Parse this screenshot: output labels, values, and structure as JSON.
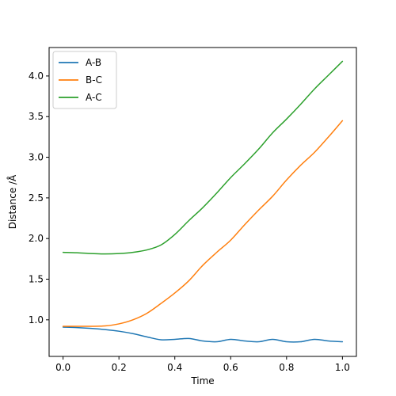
{
  "chart_data": {
    "type": "line",
    "title": "",
    "xlabel": "Time",
    "ylabel": "Distance /Å",
    "xlim": [
      -0.05,
      1.05
    ],
    "ylim": [
      0.55,
      4.35
    ],
    "xticks": [
      0.0,
      0.2,
      0.4,
      0.6,
      0.8,
      1.0
    ],
    "xtick_labels": [
      "0.0",
      "0.2",
      "0.4",
      "0.6",
      "0.8",
      "1.0"
    ],
    "yticks": [
      1.0,
      1.5,
      2.0,
      2.5,
      3.0,
      3.5,
      4.0
    ],
    "ytick_labels": [
      "1.0",
      "1.5",
      "2.0",
      "2.5",
      "3.0",
      "3.5",
      "4.0"
    ],
    "grid": false,
    "legend_position": "top-left",
    "x": [
      0.0,
      0.05,
      0.1,
      0.15,
      0.2,
      0.25,
      0.3,
      0.35,
      0.4,
      0.45,
      0.5,
      0.55,
      0.6,
      0.65,
      0.7,
      0.75,
      0.8,
      0.85,
      0.9,
      0.95,
      1.0
    ],
    "series": [
      {
        "name": "A-B",
        "color": "#1f77b4",
        "values": [
          0.91,
          0.905,
          0.895,
          0.88,
          0.86,
          0.83,
          0.79,
          0.755,
          0.76,
          0.77,
          0.74,
          0.73,
          0.76,
          0.74,
          0.73,
          0.76,
          0.73,
          0.73,
          0.76,
          0.74,
          0.73
        ]
      },
      {
        "name": "B-C",
        "color": "#ff7f0e",
        "values": [
          0.92,
          0.92,
          0.92,
          0.925,
          0.95,
          1.0,
          1.08,
          1.2,
          1.33,
          1.48,
          1.67,
          1.83,
          1.98,
          2.17,
          2.35,
          2.52,
          2.72,
          2.9,
          3.06,
          3.25,
          3.45
        ]
      },
      {
        "name": "A-C",
        "color": "#2ca02c",
        "values": [
          1.83,
          1.825,
          1.815,
          1.81,
          1.815,
          1.83,
          1.86,
          1.92,
          2.05,
          2.22,
          2.38,
          2.56,
          2.75,
          2.92,
          3.1,
          3.3,
          3.47,
          3.65,
          3.84,
          4.01,
          4.18
        ]
      }
    ]
  }
}
